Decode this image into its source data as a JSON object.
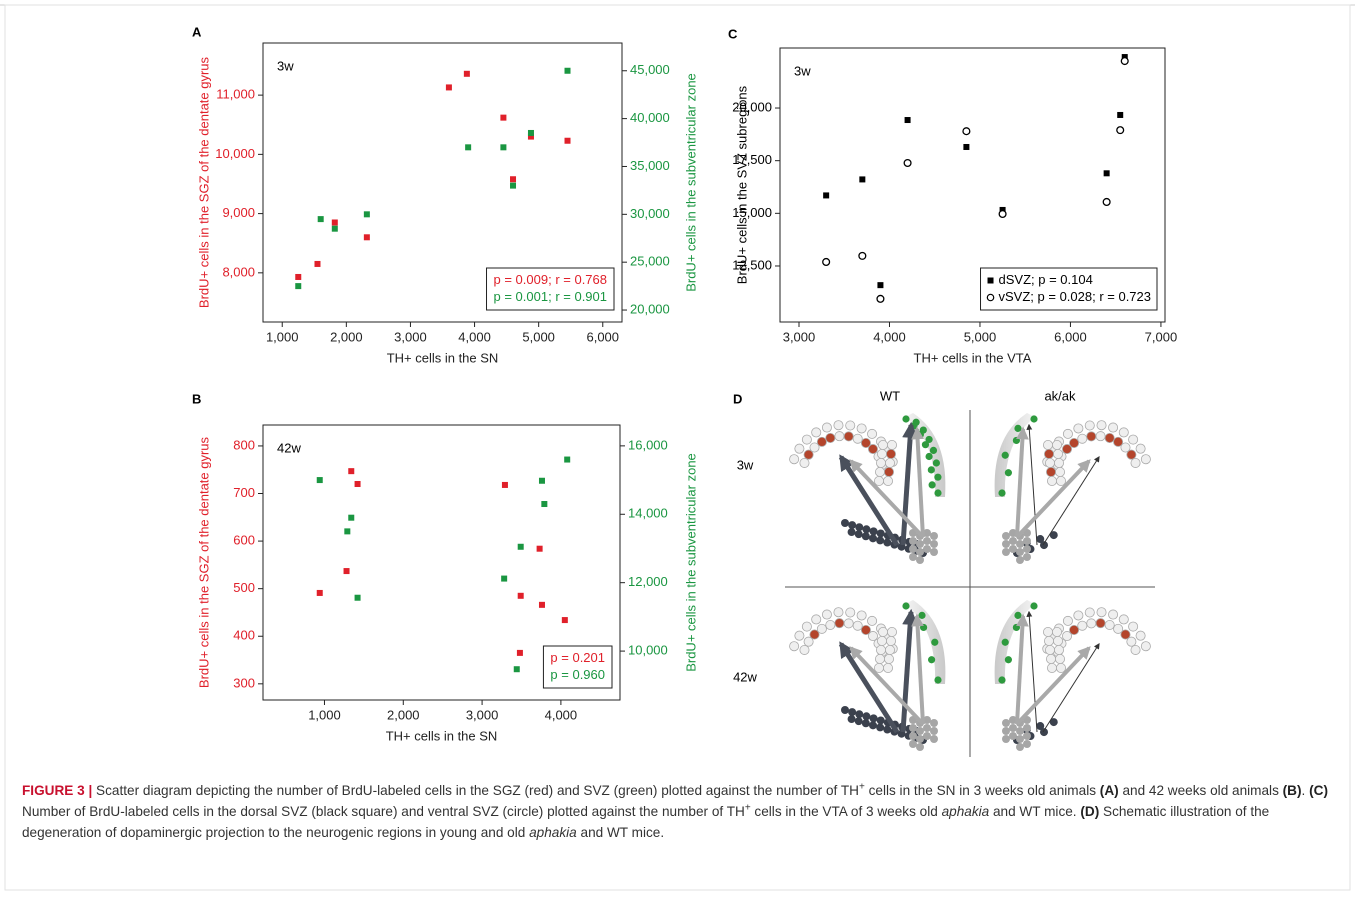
{
  "chart_data": [
    {
      "label": "A",
      "type": "scatter",
      "annotation": "3w",
      "xlabel": "TH+ cells in the SN",
      "ylabel": "BrdU+ cells in the SGZ of the dentate gyrus",
      "y2label": "BrdU+ cells in the subventricular zone",
      "xlim": [
        700,
        6300
      ],
      "xticks": [
        {
          "value": 1000,
          "label": "1,000"
        },
        {
          "value": 2000,
          "label": "2,000"
        },
        {
          "value": 3000,
          "label": "3,000"
        },
        {
          "value": 4000,
          "label": "4,000"
        },
        {
          "value": 5000,
          "label": "5,000"
        },
        {
          "value": 6000,
          "label": "6,000"
        }
      ],
      "ylim": [
        7170,
        11880
      ],
      "yticks": [
        {
          "value": 8000,
          "label": "8,000"
        },
        {
          "value": 9000,
          "label": "9,000"
        },
        {
          "value": 10000,
          "label": "10,000"
        },
        {
          "value": 11000,
          "label": "11,000"
        }
      ],
      "y2lim": [
        18750,
        47900
      ],
      "y2ticks": [
        {
          "value": 20000,
          "label": "20,000"
        },
        {
          "value": 25000,
          "label": "25,000"
        },
        {
          "value": 30000,
          "label": "30,000"
        },
        {
          "value": 35000,
          "label": "35,000"
        },
        {
          "value": 40000,
          "label": "40,000"
        },
        {
          "value": 45000,
          "label": "45,000"
        }
      ],
      "legend": "lower right",
      "legend_symbols": false,
      "series": [
        {
          "name": "p = 0.009; r = 0.768",
          "color": "#e0202a",
          "marker": "square",
          "x": [
            1250,
            1550,
            1820,
            2320,
            3600,
            3880,
            4450,
            4600,
            4880,
            5450
          ],
          "values": [
            7930,
            8150,
            8850,
            8600,
            11130,
            11360,
            10620,
            9580,
            10300,
            10230
          ]
        },
        {
          "name": "p = 0.001; r = 0.901",
          "color": "#1a9641",
          "marker": "square",
          "axis": "y2",
          "x": [
            1250,
            1600,
            1820,
            2320,
            3900,
            4450,
            4600,
            4880,
            5450
          ],
          "values": [
            22500,
            29500,
            28500,
            30000,
            37000,
            37000,
            33000,
            38500,
            45000
          ]
        }
      ]
    },
    {
      "label": "B",
      "type": "scatter",
      "annotation": "42w",
      "xlabel": "TH+ cells in the SN",
      "ylabel": "BrdU+ cells in the SGZ of the dentate gyrus",
      "y2label": "BrdU+ cells in the subventricular zone",
      "xlim": [
        220,
        4750
      ],
      "xticks": [
        {
          "value": 1000,
          "label": "1,000"
        },
        {
          "value": 2000,
          "label": "2,000"
        },
        {
          "value": 3000,
          "label": "3,000"
        },
        {
          "value": 4000,
          "label": "4,000"
        }
      ],
      "ylim": [
        266,
        844
      ],
      "yticks": [
        300,
        400,
        500,
        600,
        700,
        800
      ],
      "y2lim": [
        8570,
        16610
      ],
      "y2ticks": [
        {
          "value": 10000,
          "label": "10,000"
        },
        {
          "value": 12000,
          "label": "12,000"
        },
        {
          "value": 14000,
          "label": "14,000"
        },
        {
          "value": 16000,
          "label": "16,000"
        }
      ],
      "legend": "lower right",
      "legend_symbols": false,
      "series": [
        {
          "name": "p = 0.201",
          "color": "#e0202a",
          "marker": "square",
          "x": [
            940,
            1340,
            1420,
            1280,
            3290,
            3480,
            3490,
            3730,
            3760,
            4050
          ],
          "values": [
            491,
            747,
            720,
            537,
            718,
            365,
            485,
            584,
            466,
            434
          ]
        },
        {
          "name": "p = 0.960",
          "color": "#1a9641",
          "marker": "square",
          "axis": "y2",
          "x": [
            940,
            1340,
            1290,
            1420,
            3280,
            3490,
            3760,
            3790,
            4080,
            3440
          ],
          "values": [
            15000,
            13900,
            13500,
            11560,
            12120,
            13050,
            14980,
            14300,
            15600,
            9470
          ]
        }
      ]
    },
    {
      "label": "C",
      "type": "scatter",
      "annotation": "3w",
      "xlabel": "TH+ cells in the VTA",
      "ylabel": "BrdU+ cells in the SVZ subregions",
      "xlim": [
        2790,
        7045
      ],
      "xticks": [
        {
          "value": 3000,
          "label": "3,000"
        },
        {
          "value": 4000,
          "label": "4,000"
        },
        {
          "value": 5000,
          "label": "5,000"
        },
        {
          "value": 6000,
          "label": "6,000"
        },
        {
          "value": 7000,
          "label": "7,000"
        }
      ],
      "ylim": [
        9840,
        22850
      ],
      "yticks": [
        {
          "value": 12500,
          "label": "12,500"
        },
        {
          "value": 15000,
          "label": "15,000"
        },
        {
          "value": 17500,
          "label": "17,500"
        },
        {
          "value": 20000,
          "label": "20,000"
        }
      ],
      "legend": "lower right",
      "legend_symbols": true,
      "series": [
        {
          "name": "dSVZ; p = 0.104",
          "color": "#000000",
          "marker": "square",
          "x": [
            3300,
            3700,
            3900,
            4200,
            4850,
            5250,
            6400,
            6550,
            6600
          ],
          "values": [
            15850,
            16610,
            11590,
            19430,
            18150,
            15160,
            16900,
            19670,
            22420
          ]
        },
        {
          "name": "vSVZ; p = 0.028; r = 0.723",
          "color": "#000000",
          "marker": "circle",
          "x": [
            3300,
            3700,
            3900,
            4200,
            4850,
            5250,
            6400,
            6550,
            6600
          ],
          "values": [
            12690,
            12980,
            10940,
            17390,
            18900,
            14970,
            15540,
            18950,
            22230
          ]
        }
      ]
    }
  ],
  "diagram": {
    "label": "D",
    "columns": [
      "WT",
      "ak/ak"
    ],
    "rows": [
      "3w",
      "42w"
    ]
  },
  "caption": [
    {
      "style": "lead",
      "text": "FIGURE 3 |"
    },
    {
      "style": "n",
      "text": " Scatter diagram depicting the number of BrdU-labeled cells in the SGZ (red) and SVZ (green) plotted against the number of TH"
    },
    {
      "style": "sup",
      "text": "+"
    },
    {
      "style": "n",
      "text": " cells in the SN in 3 weeks old animals "
    },
    {
      "style": "b",
      "text": "(A)"
    },
    {
      "style": "n",
      "text": " and 42 weeks old animals "
    },
    {
      "style": "b",
      "text": "(B)"
    },
    {
      "style": "n",
      "text": ". "
    },
    {
      "style": "b",
      "text": "(C)"
    },
    {
      "style": "n",
      "text": " Number of BrdU-labeled cells in the dorsal SVZ (black square) and ventral SVZ (circle) plotted against the number of TH"
    },
    {
      "style": "sup",
      "text": "+"
    },
    {
      "style": "n",
      "text": " cells in the VTA of 3 weeks old "
    },
    {
      "style": "i",
      "text": "aphakia"
    },
    {
      "style": "n",
      "text": " and WT mice. "
    },
    {
      "style": "b",
      "text": "(D)"
    },
    {
      "style": "n",
      "text": " Schematic illustration of the degeneration of dopaminergic projection to the neurogenic regions in young and old "
    },
    {
      "style": "i",
      "text": "aphakia"
    },
    {
      "style": "n",
      "text": " and WT mice."
    }
  ]
}
